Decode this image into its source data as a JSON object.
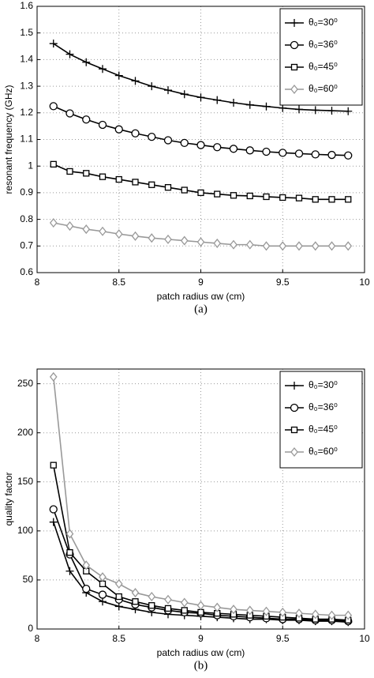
{
  "chart_data": [
    {
      "type": "line",
      "caption": "(a)",
      "xlabel": "patch radius αw (cm)",
      "ylabel": "resonant frequency (GHz)",
      "x": [
        8.1,
        8.2,
        8.3,
        8.4,
        8.5,
        8.6,
        8.7,
        8.8,
        8.9,
        9.0,
        9.1,
        9.2,
        9.3,
        9.4,
        9.5,
        9.6,
        9.7,
        9.8,
        9.9
      ],
      "xlim": [
        8,
        10
      ],
      "xticks": [
        8,
        8.5,
        9,
        9.5,
        10
      ],
      "ylim": [
        0.6,
        1.6
      ],
      "yticks": [
        0.6,
        0.7,
        0.8,
        0.9,
        1,
        1.1,
        1.2,
        1.3,
        1.4,
        1.5,
        1.6
      ],
      "grid": true,
      "legend": "upper right",
      "series": [
        {
          "name": "θ₀=30⁰",
          "color": "#000000",
          "marker": "plus",
          "values": [
            1.46,
            1.42,
            1.39,
            1.365,
            1.34,
            1.32,
            1.3,
            1.285,
            1.27,
            1.258,
            1.248,
            1.238,
            1.23,
            1.224,
            1.218,
            1.213,
            1.21,
            1.208,
            1.206
          ]
        },
        {
          "name": "θ₀=36⁰",
          "color": "#000000",
          "marker": "circle",
          "values": [
            1.225,
            1.198,
            1.175,
            1.155,
            1.138,
            1.123,
            1.11,
            1.097,
            1.087,
            1.079,
            1.071,
            1.065,
            1.059,
            1.054,
            1.05,
            1.047,
            1.044,
            1.042,
            1.04
          ]
        },
        {
          "name": "θ₀=45⁰",
          "color": "#000000",
          "marker": "square",
          "values": [
            1.007,
            0.98,
            0.973,
            0.96,
            0.95,
            0.94,
            0.93,
            0.92,
            0.91,
            0.9,
            0.895,
            0.89,
            0.888,
            0.885,
            0.882,
            0.88,
            0.875,
            0.875,
            0.875
          ]
        },
        {
          "name": "θ₀=60⁰",
          "color": "#999999",
          "marker": "diamond",
          "values": [
            0.787,
            0.775,
            0.763,
            0.755,
            0.745,
            0.737,
            0.73,
            0.725,
            0.72,
            0.715,
            0.71,
            0.705,
            0.705,
            0.7,
            0.7,
            0.7,
            0.7,
            0.7,
            0.7
          ]
        }
      ]
    },
    {
      "type": "line",
      "caption": "(b)",
      "xlabel": "patch radius αw (cm)",
      "ylabel": "quality factor",
      "x": [
        8.1,
        8.2,
        8.3,
        8.4,
        8.5,
        8.6,
        8.7,
        8.8,
        8.9,
        9.0,
        9.1,
        9.2,
        9.3,
        9.4,
        9.5,
        9.6,
        9.7,
        9.8,
        9.9
      ],
      "xlim": [
        8,
        10
      ],
      "xticks": [
        8,
        8.5,
        9,
        9.5,
        10
      ],
      "ylim": [
        0,
        265
      ],
      "yticks": [
        0,
        50,
        100,
        150,
        200,
        250
      ],
      "grid": true,
      "legend": "upper right",
      "series": [
        {
          "name": "θ₀=30⁰",
          "color": "#000000",
          "marker": "plus",
          "values": [
            109,
            59,
            37,
            28,
            23,
            20,
            17,
            15,
            14,
            13,
            12,
            11,
            10,
            10,
            9,
            9,
            8,
            8,
            7
          ]
        },
        {
          "name": "θ₀=36⁰",
          "color": "#000000",
          "marker": "circle",
          "values": [
            122,
            76,
            41,
            35,
            30,
            25,
            22,
            19,
            17,
            16,
            14,
            13,
            12,
            11,
            10,
            10,
            9,
            9,
            8
          ]
        },
        {
          "name": "θ₀=45⁰",
          "color": "#000000",
          "marker": "square",
          "values": [
            167,
            78,
            59,
            46,
            33,
            28,
            24,
            21,
            19,
            17,
            16,
            15,
            14,
            13,
            12,
            11,
            10,
            10,
            9
          ]
        },
        {
          "name": "θ₀=60⁰",
          "color": "#999999",
          "marker": "diamond",
          "values": [
            257,
            97,
            65,
            53,
            46,
            37,
            33,
            30,
            27,
            24,
            22,
            20,
            19,
            18,
            17,
            16,
            15,
            14,
            14
          ]
        }
      ]
    }
  ]
}
